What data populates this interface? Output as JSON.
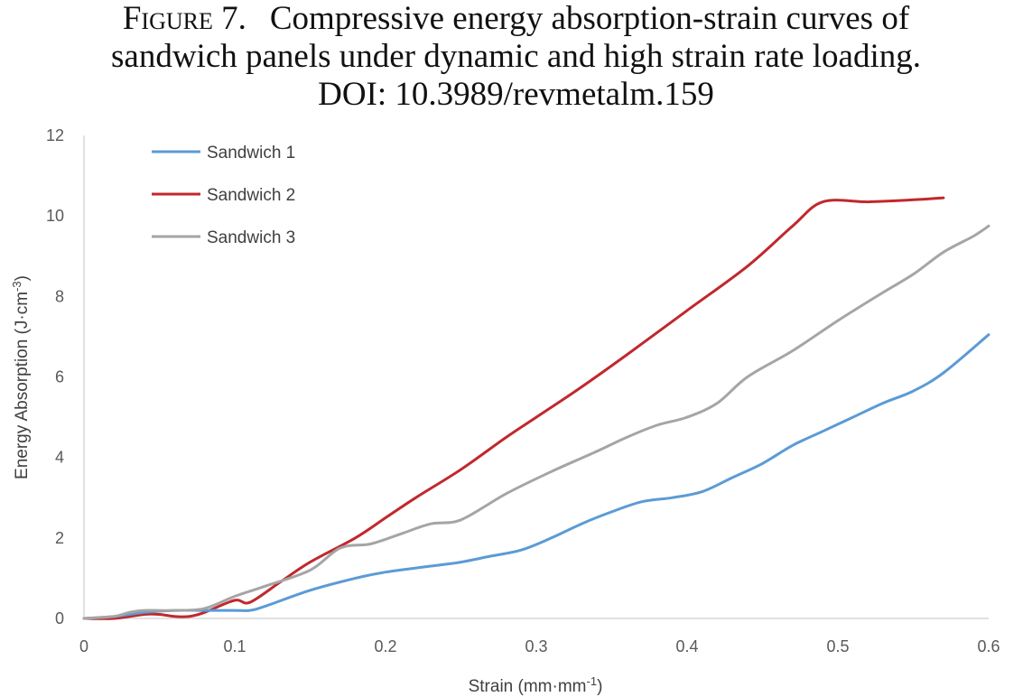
{
  "caption": {
    "label": "Figure 7.",
    "line1": "Compressive energy absorption-strain curves of",
    "line2": "sandwich panels under dynamic and high strain rate loading.",
    "line3": "DOI: 10.3989/revmetalm.159"
  },
  "chart_data": {
    "type": "line",
    "xlabel_text": "Strain (mm·mm",
    "xlabel_sup": "-1",
    "xlabel_close": ")",
    "ylabel_text": "Energy Absorption (J·cm",
    "ylabel_sup": "-3",
    "ylabel_close": ")",
    "xlim": [
      0,
      0.6
    ],
    "ylim": [
      0,
      12
    ],
    "x_ticks": [
      "0",
      "0.1",
      "0.2",
      "0.3",
      "0.4",
      "0.5",
      "0.6"
    ],
    "y_ticks": [
      "0",
      "2",
      "4",
      "6",
      "8",
      "10",
      "12"
    ],
    "grid": false,
    "legend_position": "top-left",
    "series": [
      {
        "name": "Sandwich 1",
        "color": "#5b9bd5",
        "x": [
          0,
          0.02,
          0.04,
          0.06,
          0.08,
          0.1,
          0.11,
          0.12,
          0.15,
          0.18,
          0.2,
          0.23,
          0.25,
          0.27,
          0.29,
          0.31,
          0.33,
          0.35,
          0.37,
          0.39,
          0.41,
          0.43,
          0.45,
          0.47,
          0.49,
          0.51,
          0.53,
          0.55,
          0.57,
          0.6
        ],
        "y": [
          0,
          0.05,
          0.15,
          0.2,
          0.2,
          0.2,
          0.2,
          0.3,
          0.7,
          1.0,
          1.15,
          1.3,
          1.4,
          1.55,
          1.7,
          2.0,
          2.35,
          2.65,
          2.9,
          3.0,
          3.15,
          3.5,
          3.85,
          4.3,
          4.65,
          5.0,
          5.35,
          5.65,
          6.1,
          7.05
        ]
      },
      {
        "name": "Sandwich 2",
        "color": "#c0282d",
        "x": [
          0,
          0.02,
          0.04,
          0.05,
          0.06,
          0.07,
          0.08,
          0.1,
          0.11,
          0.13,
          0.15,
          0.18,
          0.2,
          0.22,
          0.25,
          0.28,
          0.3,
          0.33,
          0.36,
          0.4,
          0.44,
          0.47,
          0.49,
          0.52,
          0.55,
          0.57
        ],
        "y": [
          0,
          0,
          0.1,
          0.1,
          0.05,
          0.05,
          0.15,
          0.45,
          0.4,
          0.9,
          1.4,
          2.0,
          2.5,
          3.0,
          3.7,
          4.5,
          5.0,
          5.75,
          6.55,
          7.65,
          8.75,
          9.75,
          10.35,
          10.35,
          10.4,
          10.45
        ]
      },
      {
        "name": "Sandwich 3",
        "color": "#a5a5a5",
        "x": [
          0,
          0.02,
          0.03,
          0.04,
          0.06,
          0.08,
          0.1,
          0.12,
          0.15,
          0.17,
          0.19,
          0.21,
          0.23,
          0.25,
          0.28,
          0.31,
          0.34,
          0.36,
          0.38,
          0.4,
          0.42,
          0.44,
          0.47,
          0.5,
          0.53,
          0.55,
          0.57,
          0.59,
          0.6
        ],
        "y": [
          0,
          0.05,
          0.15,
          0.2,
          0.2,
          0.25,
          0.55,
          0.8,
          1.2,
          1.75,
          1.85,
          2.1,
          2.35,
          2.45,
          3.1,
          3.65,
          4.15,
          4.5,
          4.8,
          5.0,
          5.35,
          6.0,
          6.65,
          7.4,
          8.1,
          8.55,
          9.1,
          9.5,
          9.75
        ]
      }
    ]
  }
}
